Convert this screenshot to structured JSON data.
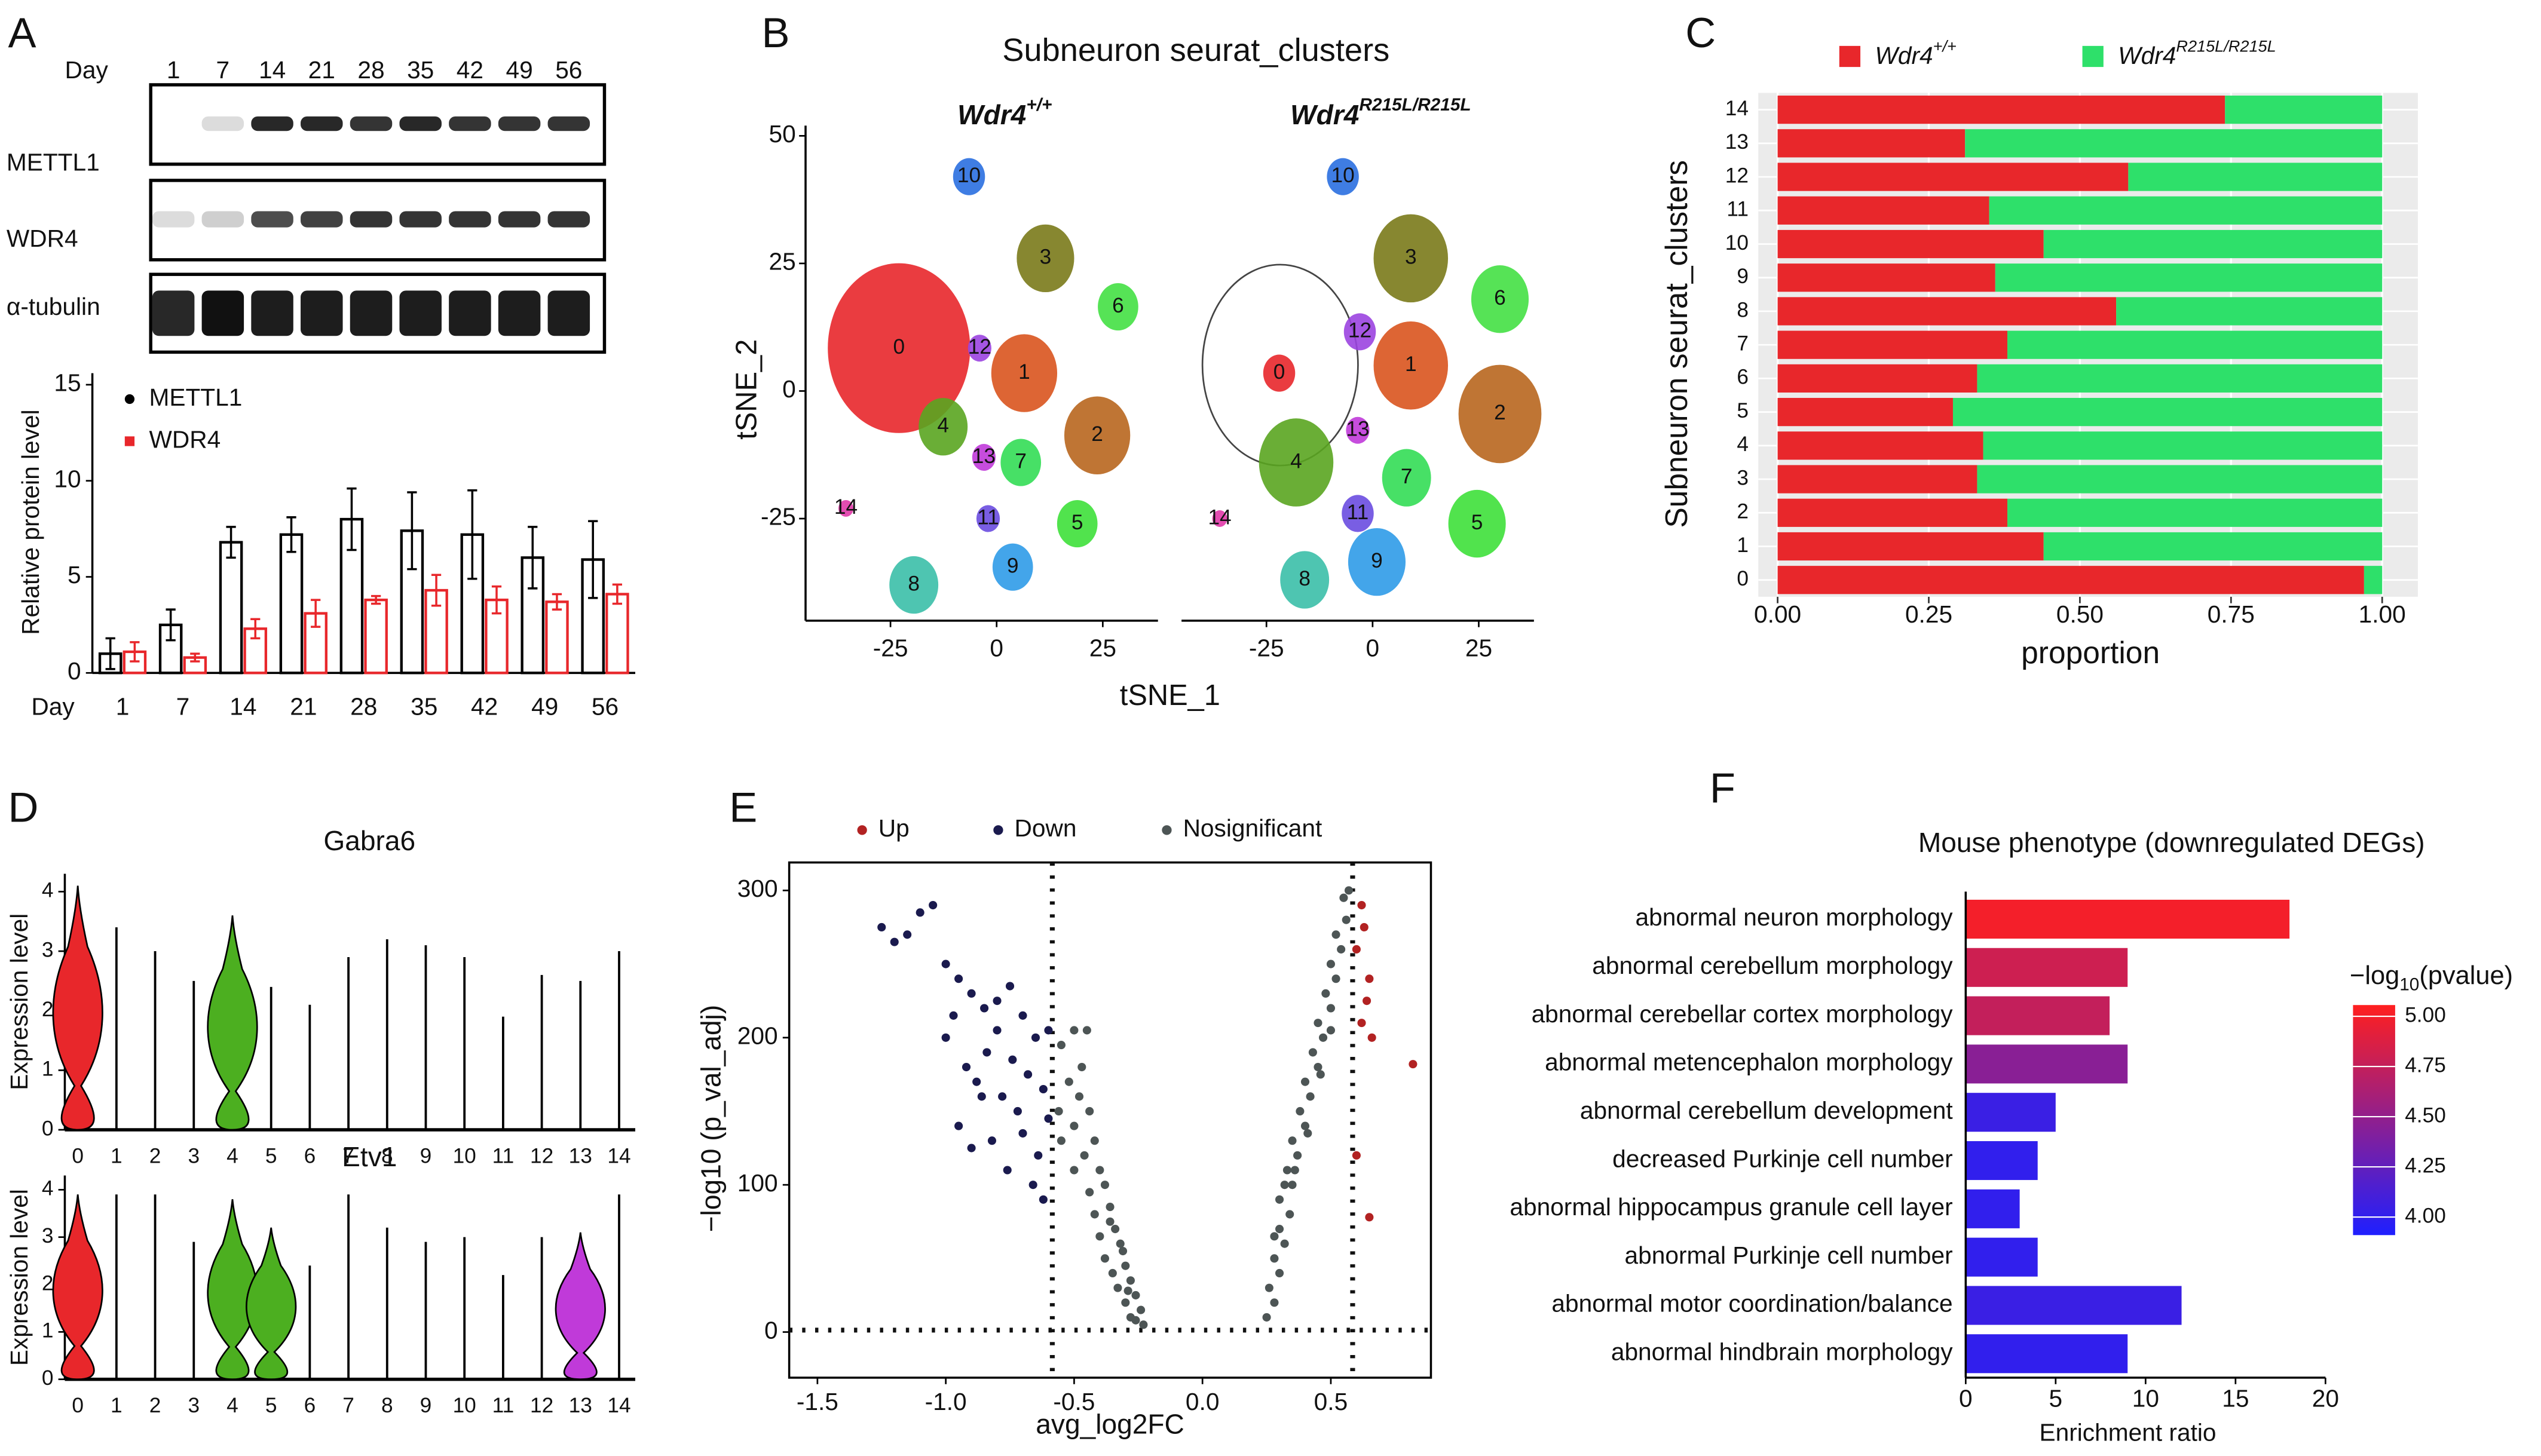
{
  "chart_data": [
    {
      "panel": "A",
      "type": "bar",
      "xlabel": "Day",
      "ylabel": "Relative protein level",
      "blot_labels": [
        "METTL1",
        "WDR4",
        "α-tubulin"
      ],
      "categories": [
        "1",
        "7",
        "14",
        "21",
        "28",
        "35",
        "42",
        "49",
        "56"
      ],
      "series": [
        {
          "name": "METTL1",
          "color": "#000000",
          "values": [
            1,
            2.5,
            6.8,
            7.2,
            8,
            7.4,
            7.2,
            6,
            5.9
          ],
          "errors": [
            0.8,
            0.8,
            0.8,
            0.9,
            1.6,
            2,
            2.3,
            1.6,
            2
          ]
        },
        {
          "name": "WDR4",
          "color": "#e8272b",
          "values": [
            1.1,
            0.8,
            2.3,
            3.1,
            3.8,
            4.3,
            3.8,
            3.7,
            4.1
          ],
          "errors": [
            0.5,
            0.2,
            0.5,
            0.7,
            0.2,
            0.8,
            0.7,
            0.4,
            0.5
          ]
        }
      ],
      "ylim": [
        0,
        15.6
      ],
      "yticks": [
        0,
        5,
        10,
        15
      ]
    },
    {
      "panel": "B",
      "type": "scatter",
      "title": "Subneuron seurat_clusters",
      "xlabel": "tSNE_1",
      "ylabel": "tSNE_2",
      "facets": [
        {
          "name": "Wdr4",
          "sup": "+/+"
        },
        {
          "name": "Wdr4",
          "sup": "R215L/R215L"
        }
      ],
      "xlim": [
        -45,
        38
      ],
      "ylim": [
        -45,
        52
      ],
      "xticks": [
        -25,
        0,
        25
      ],
      "yticks": [
        -25,
        0,
        25,
        50
      ],
      "clusters": [
        {
          "name": "0",
          "color": "#e8272b",
          "x": [
            -23,
            -22
          ],
          "y": [
            8.4,
            3.5
          ],
          "spread": [
            16,
            3
          ]
        },
        {
          "name": "1",
          "color": "#d9541e",
          "x": [
            6.5,
            9
          ],
          "y": [
            3.5,
            5
          ],
          "spread": [
            7,
            8
          ]
        },
        {
          "name": "2",
          "color": "#b8661e",
          "x": [
            23.7,
            30
          ],
          "y": [
            -8.7,
            -4.5
          ],
          "spread": [
            7,
            9
          ]
        },
        {
          "name": "3",
          "color": "#7a7a1a",
          "x": [
            11.5,
            9
          ],
          "y": [
            26,
            26
          ],
          "spread": [
            6,
            8
          ]
        },
        {
          "name": "4",
          "color": "#5aa520",
          "x": [
            -12.6,
            -18
          ],
          "y": [
            -7,
            -14
          ],
          "spread": [
            5,
            8
          ]
        },
        {
          "name": "5",
          "color": "#3ee03a",
          "x": [
            19,
            24.6
          ],
          "y": [
            -26,
            -26
          ],
          "spread": [
            4,
            6
          ]
        },
        {
          "name": "6",
          "color": "#44e044",
          "x": [
            28.6,
            30
          ],
          "y": [
            16.5,
            18
          ],
          "spread": [
            4,
            6
          ]
        },
        {
          "name": "7",
          "color": "#33dd55",
          "x": [
            5.7,
            8
          ],
          "y": [
            -14,
            -17
          ],
          "spread": [
            4,
            5
          ]
        },
        {
          "name": "8",
          "color": "#3bbfa8",
          "x": [
            -19.5,
            -16
          ],
          "y": [
            -38,
            -37
          ],
          "spread": [
            5,
            5
          ]
        },
        {
          "name": "9",
          "color": "#2f9be8",
          "x": [
            3.8,
            1
          ],
          "y": [
            -34.5,
            -33.5
          ],
          "spread": [
            4,
            6
          ]
        },
        {
          "name": "10",
          "color": "#2a6fe0",
          "x": [
            -6.5,
            -7
          ],
          "y": [
            42,
            42
          ],
          "spread": [
            3,
            3
          ]
        },
        {
          "name": "11",
          "color": "#6a4ce0",
          "x": [
            -2,
            -3.5
          ],
          "y": [
            -25,
            -24
          ],
          "spread": [
            2,
            3
          ]
        },
        {
          "name": "12",
          "color": "#9b44e0",
          "x": [
            -4,
            -3
          ],
          "y": [
            8.4,
            11.6
          ],
          "spread": [
            2,
            3
          ]
        },
        {
          "name": "13",
          "color": "#c03ad9",
          "x": [
            -3,
            -3.5
          ],
          "y": [
            -13,
            -7.7
          ],
          "spread": [
            2,
            2
          ]
        },
        {
          "name": "14",
          "color": "#e03aa8",
          "x": [
            -35.5,
            -36
          ],
          "y": [
            -23,
            -25
          ],
          "spread": [
            1,
            1
          ]
        }
      ]
    },
    {
      "panel": "C",
      "type": "stacked_barh",
      "xlabel": "proportion",
      "ylabel": "Subneuron seurat_clusters",
      "categories": [
        "0",
        "1",
        "2",
        "3",
        "4",
        "5",
        "6",
        "7",
        "8",
        "9",
        "10",
        "11",
        "12",
        "13",
        "14"
      ],
      "series": [
        {
          "name": "Wdr4",
          "sup": "+/+",
          "color": "#e8272b",
          "values": [
            0.97,
            0.44,
            0.38,
            0.33,
            0.34,
            0.29,
            0.33,
            0.38,
            0.56,
            0.36,
            0.44,
            0.35,
            0.58,
            0.31,
            0.74
          ]
        },
        {
          "name": "Wdr4",
          "sup": "R215L/R215L",
          "color": "#2ee06a",
          "values": [
            0.03,
            0.56,
            0.62,
            0.67,
            0.66,
            0.71,
            0.67,
            0.62,
            0.44,
            0.64,
            0.56,
            0.65,
            0.42,
            0.69,
            0.26
          ]
        }
      ],
      "xlim": [
        -0.032,
        1.059
      ],
      "grid": true,
      "xticks": [
        {
          "value": 0,
          "label": "0.00"
        },
        {
          "value": 0.25,
          "label": "0.25"
        },
        {
          "value": 0.5,
          "label": "0.50"
        },
        {
          "value": 0.75,
          "label": "0.75"
        },
        {
          "value": 1,
          "label": "1.00"
        }
      ]
    },
    {
      "panel": "D",
      "type": "violin",
      "ylabel": "Expression level",
      "categories": [
        "0",
        "1",
        "2",
        "3",
        "4",
        "5",
        "6",
        "7",
        "8",
        "9",
        "10",
        "11",
        "12",
        "13",
        "14"
      ],
      "ylim": [
        0,
        4.3
      ],
      "yticks": [
        0,
        1,
        2,
        3,
        4
      ],
      "plots": [
        {
          "title": "Gabra6",
          "values": [
            4.1,
            3.4,
            3.0,
            2.5,
            3.6,
            2.4,
            2.1,
            2.9,
            3.2,
            3.1,
            2.9,
            1.9,
            2.6,
            2.5,
            3.0
          ],
          "violin_colors": [
            "#e8272b",
            null,
            null,
            null,
            "#4caf20",
            null,
            null,
            null,
            null,
            null,
            null,
            null,
            null,
            null,
            null
          ]
        },
        {
          "title": "Etv1",
          "values": [
            3.9,
            3.9,
            3.9,
            2.9,
            3.8,
            3.2,
            2.4,
            3.9,
            3.2,
            2.9,
            3.0,
            2.2,
            3.0,
            3.1,
            3.9
          ],
          "violin_colors": [
            "#e8272b",
            null,
            null,
            null,
            "#4caf20",
            "#4caf20",
            null,
            null,
            null,
            null,
            null,
            null,
            null,
            "#c03ad9",
            null
          ]
        }
      ]
    },
    {
      "panel": "E",
      "type": "scatter",
      "xlabel": "avg_log2FC",
      "ylabel": "−log10 (p_val_adj)",
      "xlim": [
        -1.61,
        0.89
      ],
      "ylim": [
        -31,
        319
      ],
      "yticks": [
        0,
        100,
        200,
        300
      ],
      "xticks": [
        -1.5,
        {
          "value": -1,
          "label": "-1.0"
        },
        -0.5,
        {
          "value": 0,
          "label": "0.0"
        },
        0.5
      ],
      "vlines": [
        -0.585,
        0.585
      ],
      "hline": 1.3,
      "series": [
        {
          "name": "Up",
          "color": "#b22222",
          "x": [
            0.62,
            0.63,
            0.6,
            0.65,
            0.64,
            0.62,
            0.66,
            0.82,
            0.6,
            0.65
          ],
          "values": [
            290,
            275,
            260,
            240,
            225,
            210,
            200,
            182,
            120,
            78
          ]
        },
        {
          "name": "Down",
          "color": "#1a1a4e",
          "x": [
            -1.25,
            -1.2,
            -1.15,
            -1.1,
            -1.05,
            -1.0,
            -0.95,
            -0.9,
            -0.85,
            -0.8,
            -0.75,
            -0.7,
            -0.65,
            -0.6,
            -0.92,
            -0.88,
            -0.84,
            -0.78,
            -0.72,
            -0.68,
            -0.62,
            -0.95,
            -0.9,
            -0.82,
            -0.76,
            -0.7,
            -0.64,
            -0.6,
            -0.86,
            -0.74,
            -0.66,
            -0.62,
            -1.0,
            -0.97,
            -0.8
          ],
          "values": [
            275,
            265,
            270,
            285,
            290,
            250,
            240,
            230,
            220,
            225,
            235,
            215,
            200,
            205,
            180,
            170,
            190,
            160,
            150,
            175,
            165,
            140,
            125,
            130,
            110,
            135,
            120,
            145,
            160,
            185,
            100,
            90,
            200,
            215,
            205
          ]
        },
        {
          "name": "Nosignificant",
          "color": "#4d5555",
          "x": [
            -0.55,
            -0.5,
            -0.45,
            -0.52,
            -0.48,
            -0.44,
            -0.5,
            -0.55,
            -0.42,
            -0.46,
            -0.4,
            -0.5,
            -0.38,
            -0.44,
            -0.36,
            -0.42,
            -0.34,
            -0.4,
            -0.32,
            -0.38,
            -0.3,
            -0.35,
            -0.28,
            -0.33,
            -0.26,
            -0.3,
            -0.24,
            -0.28,
            -0.23,
            -0.26,
            -0.56,
            -0.47,
            -0.36,
            -0.31,
            -0.29,
            0.25,
            0.28,
            0.26,
            0.3,
            0.28,
            0.32,
            0.3,
            0.34,
            0.3,
            0.35,
            0.33,
            0.37,
            0.35,
            0.4,
            0.38,
            0.42,
            0.4,
            0.45,
            0.43,
            0.47,
            0.45,
            0.5,
            0.48,
            0.52,
            0.5,
            0.54,
            0.52,
            0.56,
            0.55,
            0.57,
            0.32,
            0.36,
            0.28,
            0.41,
            0.46,
            0.5
          ],
          "values": [
            195,
            205,
            205,
            170,
            160,
            150,
            140,
            130,
            130,
            120,
            110,
            110,
            100,
            95,
            85,
            80,
            70,
            65,
            60,
            50,
            45,
            40,
            35,
            30,
            25,
            20,
            15,
            10,
            5,
            8,
            150,
            180,
            75,
            55,
            28,
            10,
            20,
            30,
            40,
            50,
            60,
            70,
            80,
            90,
            100,
            110,
            120,
            130,
            140,
            150,
            160,
            170,
            180,
            190,
            200,
            210,
            220,
            230,
            240,
            250,
            260,
            270,
            280,
            295,
            300,
            100,
            110,
            65,
            135,
            175,
            205
          ]
        }
      ]
    },
    {
      "panel": "F",
      "type": "barh",
      "title": "Mouse phenotype (downregulated DEGs)",
      "xlabel": "Enrichment ratio",
      "categories": [
        "abnormal neuron morphology",
        "abnormal cerebellum morphology",
        "abnormal cerebellar cortex morphology",
        "abnormal metencephalon morphology",
        "abnormal cerebellum development",
        "decreased Purkinje cell number",
        "abnormal hippocampus granule cell layer",
        "abnormal Purkinje cell number",
        "abnormal motor coordination/balance",
        "abnormal hindbrain morphology"
      ],
      "values": [
        18,
        9,
        8,
        9,
        5,
        4,
        3,
        4,
        12,
        9
      ],
      "pvalues": [
        5.0,
        4.8,
        4.75,
        4.45,
        4.05,
        4.0,
        4.0,
        4.0,
        4.05,
        4.0
      ],
      "xlim": [
        0,
        20
      ],
      "xticks": [
        0,
        5,
        10,
        15,
        20
      ],
      "colorbar_title": [
        "−log",
        "10",
        "(pvalue)"
      ],
      "clim": [
        3.91,
        5.056
      ],
      "color_low": "#1f1fff",
      "color_high": "#ff1f1f",
      "cticks": [
        {
          "value": 4,
          "label": "4.00"
        },
        {
          "value": 4.25,
          "label": "4.25"
        },
        {
          "value": 4.5,
          "label": "4.50"
        },
        {
          "value": 4.75,
          "label": "4.75"
        },
        {
          "value": 5,
          "label": "5.00"
        }
      ]
    }
  ]
}
